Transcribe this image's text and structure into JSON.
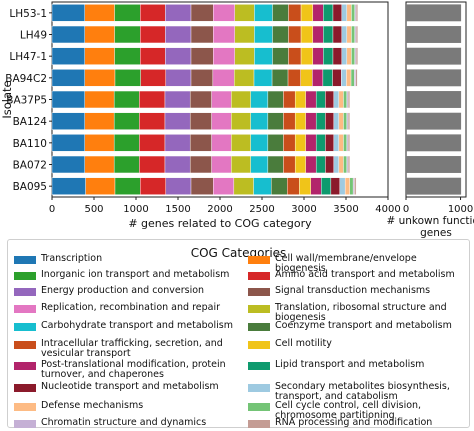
{
  "chart_data": [
    {
      "type": "bar",
      "orientation": "horizontal",
      "stacked": true,
      "ylabel": "Isolate",
      "xlabel": "# genes related to COG category",
      "xlim": [
        0,
        4000
      ],
      "xticks": [
        0,
        500,
        1000,
        1500,
        2000,
        2500,
        3000,
        3500,
        4000
      ],
      "categories": [
        "LH53-1",
        "LH49",
        "LH47-1",
        "BA94C2",
        "BA37P5",
        "BA124",
        "BA110",
        "BA072",
        "BA095"
      ],
      "series": [
        {
          "name": "Transcription",
          "color": "#1f77b4",
          "values": [
            390,
            390,
            390,
            390,
            390,
            390,
            390,
            390,
            400
          ]
        },
        {
          "name": "Cell wall/membrane/envelope biogenesis",
          "color": "#ff7f0e",
          "values": [
            355,
            355,
            355,
            360,
            350,
            350,
            350,
            350,
            350
          ]
        },
        {
          "name": "Inorganic ion transport and metabolism",
          "color": "#2ca02c",
          "values": [
            305,
            305,
            305,
            305,
            300,
            300,
            300,
            300,
            300
          ]
        },
        {
          "name": "Amino acid transport and metabolism",
          "color": "#d62728",
          "values": [
            300,
            300,
            300,
            300,
            305,
            305,
            305,
            305,
            305
          ]
        },
        {
          "name": "Energy production and conversion",
          "color": "#9467bd",
          "values": [
            305,
            305,
            305,
            300,
            300,
            300,
            300,
            300,
            300
          ]
        },
        {
          "name": "Signal transduction mechanisms",
          "color": "#8c564b",
          "values": [
            265,
            265,
            265,
            260,
            255,
            255,
            255,
            255,
            265
          ]
        },
        {
          "name": "Replication, recombination and repair",
          "color": "#e377c2",
          "values": [
            255,
            255,
            255,
            255,
            235,
            235,
            235,
            235,
            245
          ]
        },
        {
          "name": "Translation, ribosomal structure and biogenesis",
          "color": "#bcbd22",
          "values": [
            235,
            235,
            235,
            235,
            230,
            230,
            230,
            230,
            235
          ]
        },
        {
          "name": "Carbohydrate transport and metabolism",
          "color": "#17becf",
          "values": [
            215,
            215,
            215,
            215,
            205,
            205,
            205,
            205,
            210
          ]
        },
        {
          "name": "Coenzyme transport and metabolism",
          "color": "#4a7c3c",
          "values": [
            190,
            190,
            190,
            190,
            185,
            185,
            185,
            185,
            190
          ]
        },
        {
          "name": "Intracellular trafficking, secretion, and vesicular transport",
          "color": "#c94e1b",
          "values": [
            150,
            150,
            150,
            150,
            140,
            140,
            140,
            140,
            145
          ]
        },
        {
          "name": "Cell motility",
          "color": "#f0c419",
          "values": [
            140,
            140,
            140,
            140,
            125,
            125,
            125,
            125,
            135
          ]
        },
        {
          "name": "Post-translational modification, protein turnover, and chaperones",
          "color": "#b2246b",
          "values": [
            125,
            125,
            125,
            125,
            125,
            125,
            125,
            125,
            125
          ]
        },
        {
          "name": "Lipid transport and metabolism",
          "color": "#0e9a6e",
          "values": [
            115,
            115,
            115,
            115,
            110,
            110,
            110,
            110,
            115
          ]
        },
        {
          "name": "Nucleotide transport and metabolism",
          "color": "#8b1a2b",
          "values": [
            105,
            105,
            105,
            105,
            100,
            100,
            100,
            100,
            105
          ]
        },
        {
          "name": "Secondary metabolites biosynthesis, transport, and catabolism",
          "color": "#9ecae1",
          "values": [
            60,
            60,
            60,
            60,
            60,
            60,
            60,
            60,
            65
          ]
        },
        {
          "name": "Defense mechanisms",
          "color": "#fdbb84",
          "values": [
            55,
            55,
            55,
            55,
            55,
            55,
            55,
            55,
            55
          ]
        },
        {
          "name": "Cell cycle control, cell division, chromosome partitioning",
          "color": "#74c476",
          "values": [
            40,
            40,
            40,
            40,
            40,
            40,
            40,
            40,
            40
          ]
        },
        {
          "name": "Chromatin structure and dynamics",
          "color": "#c5b0d5",
          "values": [
            15,
            15,
            15,
            15,
            15,
            15,
            15,
            15,
            15
          ]
        },
        {
          "name": "RNA processing and modification",
          "color": "#c49c94",
          "values": [
            20,
            20,
            20,
            20,
            20,
            20,
            20,
            20,
            20
          ]
        }
      ]
    },
    {
      "type": "bar",
      "orientation": "horizontal",
      "xlabel": "# unkown function genes",
      "xlim": [
        0,
        1100
      ],
      "xticks": [
        0,
        1000
      ],
      "categories": [
        "LH53-1",
        "LH49",
        "LH47-1",
        "BA94C2",
        "BA37P5",
        "BA124",
        "BA110",
        "BA072",
        "BA095"
      ],
      "series": [
        {
          "color": "#7a7a7a",
          "values": [
            1010,
            1010,
            1010,
            1010,
            1010,
            1010,
            1010,
            1010,
            1010
          ]
        }
      ]
    }
  ],
  "legend": {
    "title": "COG Categories",
    "columns": [
      [
        "Transcription",
        "Inorganic ion transport and metabolism",
        "Energy production and conversion",
        "Replication, recombination and repair",
        "Carbohydrate transport and metabolism",
        "Intracellular trafficking, secretion, and vesicular transport",
        "Post-translational modification, protein turnover, and chaperones",
        "Nucleotide transport and metabolism",
        "Defense mechanisms",
        "Chromatin structure and dynamics"
      ],
      [
        "Cell wall/membrane/envelope biogenesis",
        "Amino acid transport and metabolism",
        "Signal transduction mechanisms",
        "Translation, ribosomal structure and biogenesis",
        "Coenzyme transport and metabolism",
        "Cell motility",
        "Lipid transport and metabolism",
        "Secondary metabolites biosynthesis, transport, and catabolism",
        "Cell cycle control, cell division, chromosome partitioning",
        "RNA processing and modification"
      ]
    ]
  }
}
